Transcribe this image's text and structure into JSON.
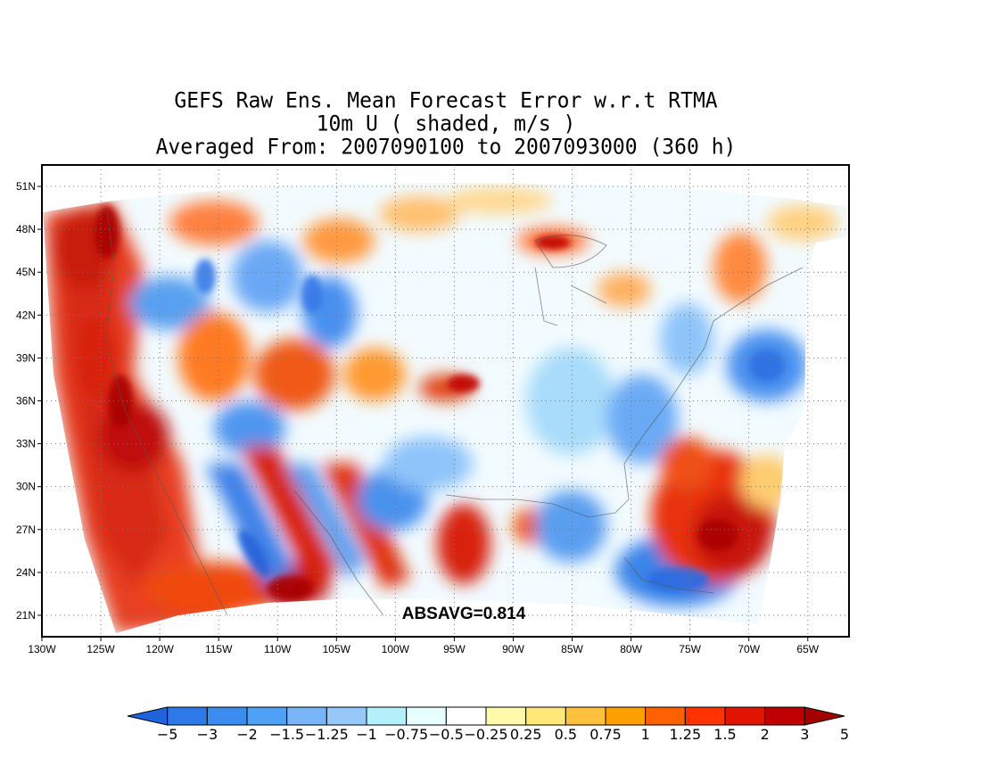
{
  "title": {
    "line1": "GEFS Raw Ens. Mean Forecast Error w.r.t RTMA",
    "line2": "10m U ( shaded, m/s )",
    "line3": "Averaged From: 2007090100 to 2007093000 (360 h)"
  },
  "absavg_label": "ABSAVG=0.814",
  "map": {
    "lon_range": [
      -130,
      -61.5
    ],
    "lat_range": [
      19.5,
      52.5
    ],
    "lon_ticks": [
      {
        "value": -130,
        "label": "130W"
      },
      {
        "value": -125,
        "label": "125W"
      },
      {
        "value": -120,
        "label": "120W"
      },
      {
        "value": -115,
        "label": "115W"
      },
      {
        "value": -110,
        "label": "110W"
      },
      {
        "value": -105,
        "label": "105W"
      },
      {
        "value": -100,
        "label": "100W"
      },
      {
        "value": -95,
        "label": "95W"
      },
      {
        "value": -90,
        "label": "90W"
      },
      {
        "value": -85,
        "label": "85W"
      },
      {
        "value": -80,
        "label": "80W"
      },
      {
        "value": -75,
        "label": "75W"
      },
      {
        "value": -70,
        "label": "70W"
      },
      {
        "value": -65,
        "label": "65W"
      }
    ],
    "lat_ticks": [
      {
        "value": 21,
        "label": "21N"
      },
      {
        "value": 24,
        "label": "24N"
      },
      {
        "value": 27,
        "label": "27N"
      },
      {
        "value": 30,
        "label": "30N"
      },
      {
        "value": 33,
        "label": "33N"
      },
      {
        "value": 36,
        "label": "36N"
      },
      {
        "value": 39,
        "label": "39N"
      },
      {
        "value": 42,
        "label": "42N"
      },
      {
        "value": 45,
        "label": "45N"
      },
      {
        "value": 48,
        "label": "48N"
      },
      {
        "value": 51,
        "label": "51N"
      }
    ],
    "grid": true
  },
  "colorbar": {
    "colors": [
      "#1e64dc",
      "#2e78e8",
      "#3c8cf0",
      "#50a0f5",
      "#78b4f8",
      "#96c8fa",
      "#b4f0fa",
      "#e6ffff",
      "#ffffff",
      "#fffaaa",
      "#ffe878",
      "#ffc03c",
      "#ffa000",
      "#ff6000",
      "#ff3200",
      "#e11400",
      "#c00000",
      "#a50000"
    ],
    "labels": [
      "−5",
      "−3",
      "−2",
      "−1.5",
      "−1.25",
      "−1",
      "−0.75",
      "−0.5",
      "−0.25",
      "0.25",
      "0.5",
      "0.75",
      "1",
      "1.25",
      "1.5",
      "2",
      "3",
      "5"
    ]
  }
}
